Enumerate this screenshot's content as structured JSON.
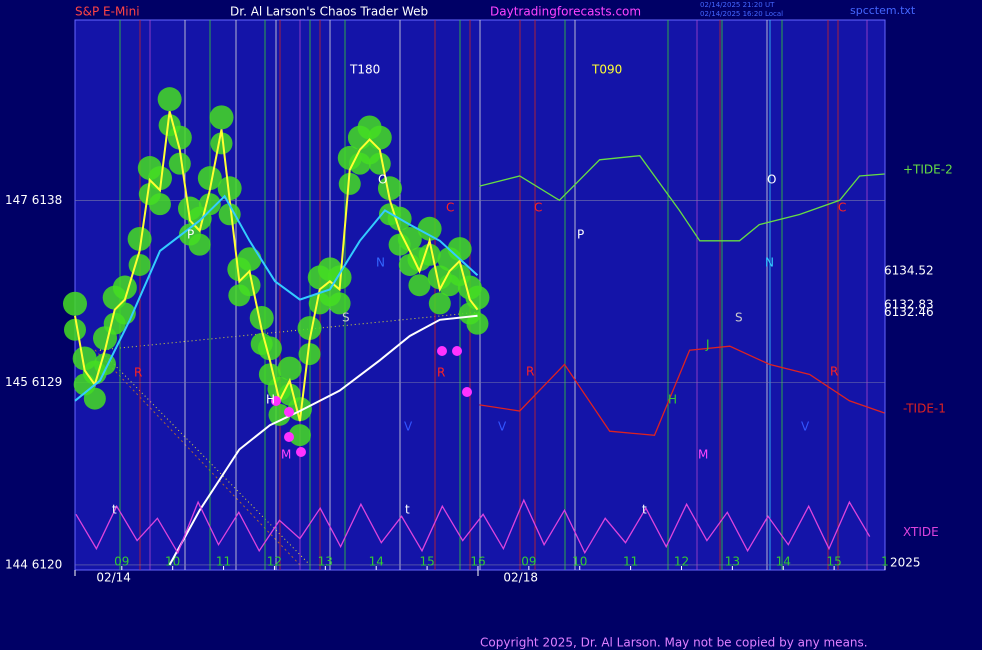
{
  "chart_data": {
    "type": "line",
    "header": [
      "S&P E-Mini",
      "Dr. Al Larson's Chaos Trader Web",
      "Daytradingforecasts.com"
    ],
    "timestamps": [
      "02/14/2025 21:20 UT",
      "02/14/2025 16:20 Local"
    ],
    "file": "spcctem.txt",
    "copyright": "Copyright 2025, Dr. Al Larson. May not be copied by any means.",
    "year": "2025",
    "date_labels": [
      "02/14",
      "02/18"
    ],
    "xlim": [
      0.08,
      16
    ],
    "ylim": [
      6119.75,
      6146.9
    ],
    "grid": true,
    "yticks": [
      {
        "value": 6120,
        "label": "144  6120"
      },
      {
        "value": 6129,
        "label": "145  6129"
      },
      {
        "value": 6138,
        "label": "147  6138"
      }
    ],
    "xticks": [
      {
        "value": 1,
        "label": "09"
      },
      {
        "value": 2,
        "label": "10"
      },
      {
        "value": 3,
        "label": "11"
      },
      {
        "value": 4,
        "label": "12"
      },
      {
        "value": 5,
        "label": "13"
      },
      {
        "value": 6,
        "label": "14"
      },
      {
        "value": 7,
        "label": "15"
      },
      {
        "value": 8,
        "label": "16"
      },
      {
        "value": 9,
        "label": "09"
      },
      {
        "value": 10,
        "label": "10"
      },
      {
        "value": 11,
        "label": "11"
      },
      {
        "value": 12,
        "label": "12"
      },
      {
        "value": 13,
        "label": "13"
      },
      {
        "value": 14,
        "label": "14"
      },
      {
        "value": 15,
        "label": "15"
      },
      {
        "value": 16,
        "label": "1"
      }
    ],
    "price_levels": [
      6134.52,
      6132.83,
      6132.46
    ],
    "series": [
      {
        "color": "#ffff33",
        "x": [
          0.08,
          0.27,
          0.47,
          0.67,
          0.86,
          1.06,
          1.35,
          1.55,
          1.75,
          1.94,
          2.14,
          2.34,
          2.53,
          2.73,
          2.96,
          3.12,
          3.31,
          3.51,
          3.75,
          3.91,
          4.1,
          4.3,
          4.5,
          4.69,
          4.89,
          5.09,
          5.28,
          5.48,
          5.68,
          5.87,
          6.07,
          6.27,
          6.46,
          6.66,
          6.85,
          7.05,
          7.25,
          7.44,
          7.64,
          7.84,
          7.99
        ],
        "values": [
          6132.3,
          6129.6,
          6128.9,
          6130.6,
          6132.6,
          6133.1,
          6135.5,
          6139.0,
          6138.5,
          6142.4,
          6140.5,
          6137.0,
          6136.5,
          6138.5,
          6141.5,
          6138.0,
          6134.0,
          6134.5,
          6131.6,
          6130.1,
          6128.1,
          6129.1,
          6127.1,
          6131.1,
          6133.6,
          6134.0,
          6133.6,
          6139.5,
          6140.5,
          6141.0,
          6140.5,
          6138.0,
          6136.5,
          6135.5,
          6134.5,
          6136.0,
          6133.6,
          6134.5,
          6135.0,
          6133.1,
          6132.6
        ]
      },
      {
        "color": "#33ccff",
        "x": [
          0.08,
          0.57,
          1.16,
          1.75,
          2.53,
          3.02,
          3.51,
          4.01,
          4.5,
          5.09,
          5.68,
          6.17,
          6.66,
          7.25,
          7.99
        ],
        "values": [
          6128.1,
          6129.1,
          6132.1,
          6135.5,
          6137.0,
          6138.2,
          6136.0,
          6134.0,
          6133.1,
          6133.6,
          6136.0,
          6137.5,
          6136.8,
          6136.0,
          6134.3
        ]
      },
      {
        "color": "#ffffff",
        "x": [
          1.94,
          2.53,
          3.31,
          3.91,
          4.5,
          5.28,
          6.07,
          6.66,
          7.25,
          7.99
        ],
        "values": [
          6120.0,
          6122.7,
          6125.7,
          6126.9,
          6127.6,
          6128.6,
          6130.1,
          6131.3,
          6132.1,
          6132.3
        ]
      },
      {
        "name": "+TIDE-2",
        "color": "#66dd44",
        "x": [
          8.03,
          8.82,
          9.6,
          10.39,
          11.18,
          11.96,
          12.36,
          13.14,
          13.53,
          14.32,
          15.11,
          15.5,
          15.99
        ],
        "values": [
          6138.7,
          6139.2,
          6138.0,
          6140.0,
          6140.2,
          6137.5,
          6136.0,
          6136.0,
          6136.8,
          6137.3,
          6138.0,
          6139.2,
          6139.3
        ]
      },
      {
        "name": "-TIDE-1",
        "color": "#dd2222",
        "x": [
          8.03,
          8.82,
          9.7,
          10.59,
          11.47,
          12.16,
          12.95,
          13.73,
          14.52,
          15.3,
          15.99
        ],
        "values": [
          6127.9,
          6127.6,
          6129.9,
          6126.6,
          6126.4,
          6130.6,
          6130.8,
          6129.9,
          6129.4,
          6128.1,
          6127.5
        ]
      },
      {
        "name": "XTIDE",
        "color": "#dd44dd",
        "x": [
          0.1,
          0.5,
          0.9,
          1.3,
          1.7,
          2.1,
          2.5,
          2.9,
          3.3,
          3.7,
          4.1,
          4.5,
          4.9,
          5.3,
          5.7,
          6.1,
          6.5,
          6.9,
          7.3,
          7.7,
          8.1,
          8.5,
          8.9,
          9.3,
          9.7,
          10.1,
          10.5,
          10.9,
          11.3,
          11.7,
          12.1,
          12.5,
          12.9,
          13.3,
          13.7,
          14.1,
          14.5,
          14.9,
          15.3,
          15.7
        ],
        "values": [
          6122.5,
          6120.8,
          6122.9,
          6121.2,
          6122.3,
          6120.6,
          6123.1,
          6121.0,
          6122.6,
          6120.7,
          6122.2,
          6121.3,
          6122.8,
          6120.9,
          6123.0,
          6121.1,
          6122.4,
          6120.7,
          6122.9,
          6121.2,
          6122.5,
          6120.8,
          6123.2,
          6121.0,
          6122.7,
          6120.6,
          6122.3,
          6121.1,
          6122.8,
          6120.9,
          6123.0,
          6121.2,
          6122.6,
          6120.7,
          6122.4,
          6121.0,
          6122.9,
          6120.8,
          6123.1,
          6121.4
        ]
      }
    ],
    "annotations": [
      "T180",
      "T090",
      "P",
      "O",
      "N",
      "S",
      "C",
      "C",
      "C",
      "R",
      "R",
      "R",
      "R",
      "H",
      "H",
      "M",
      "M",
      "P",
      "O",
      "N",
      "S",
      "J",
      "V",
      "V",
      "V",
      "t",
      "t",
      "t"
    ]
  }
}
